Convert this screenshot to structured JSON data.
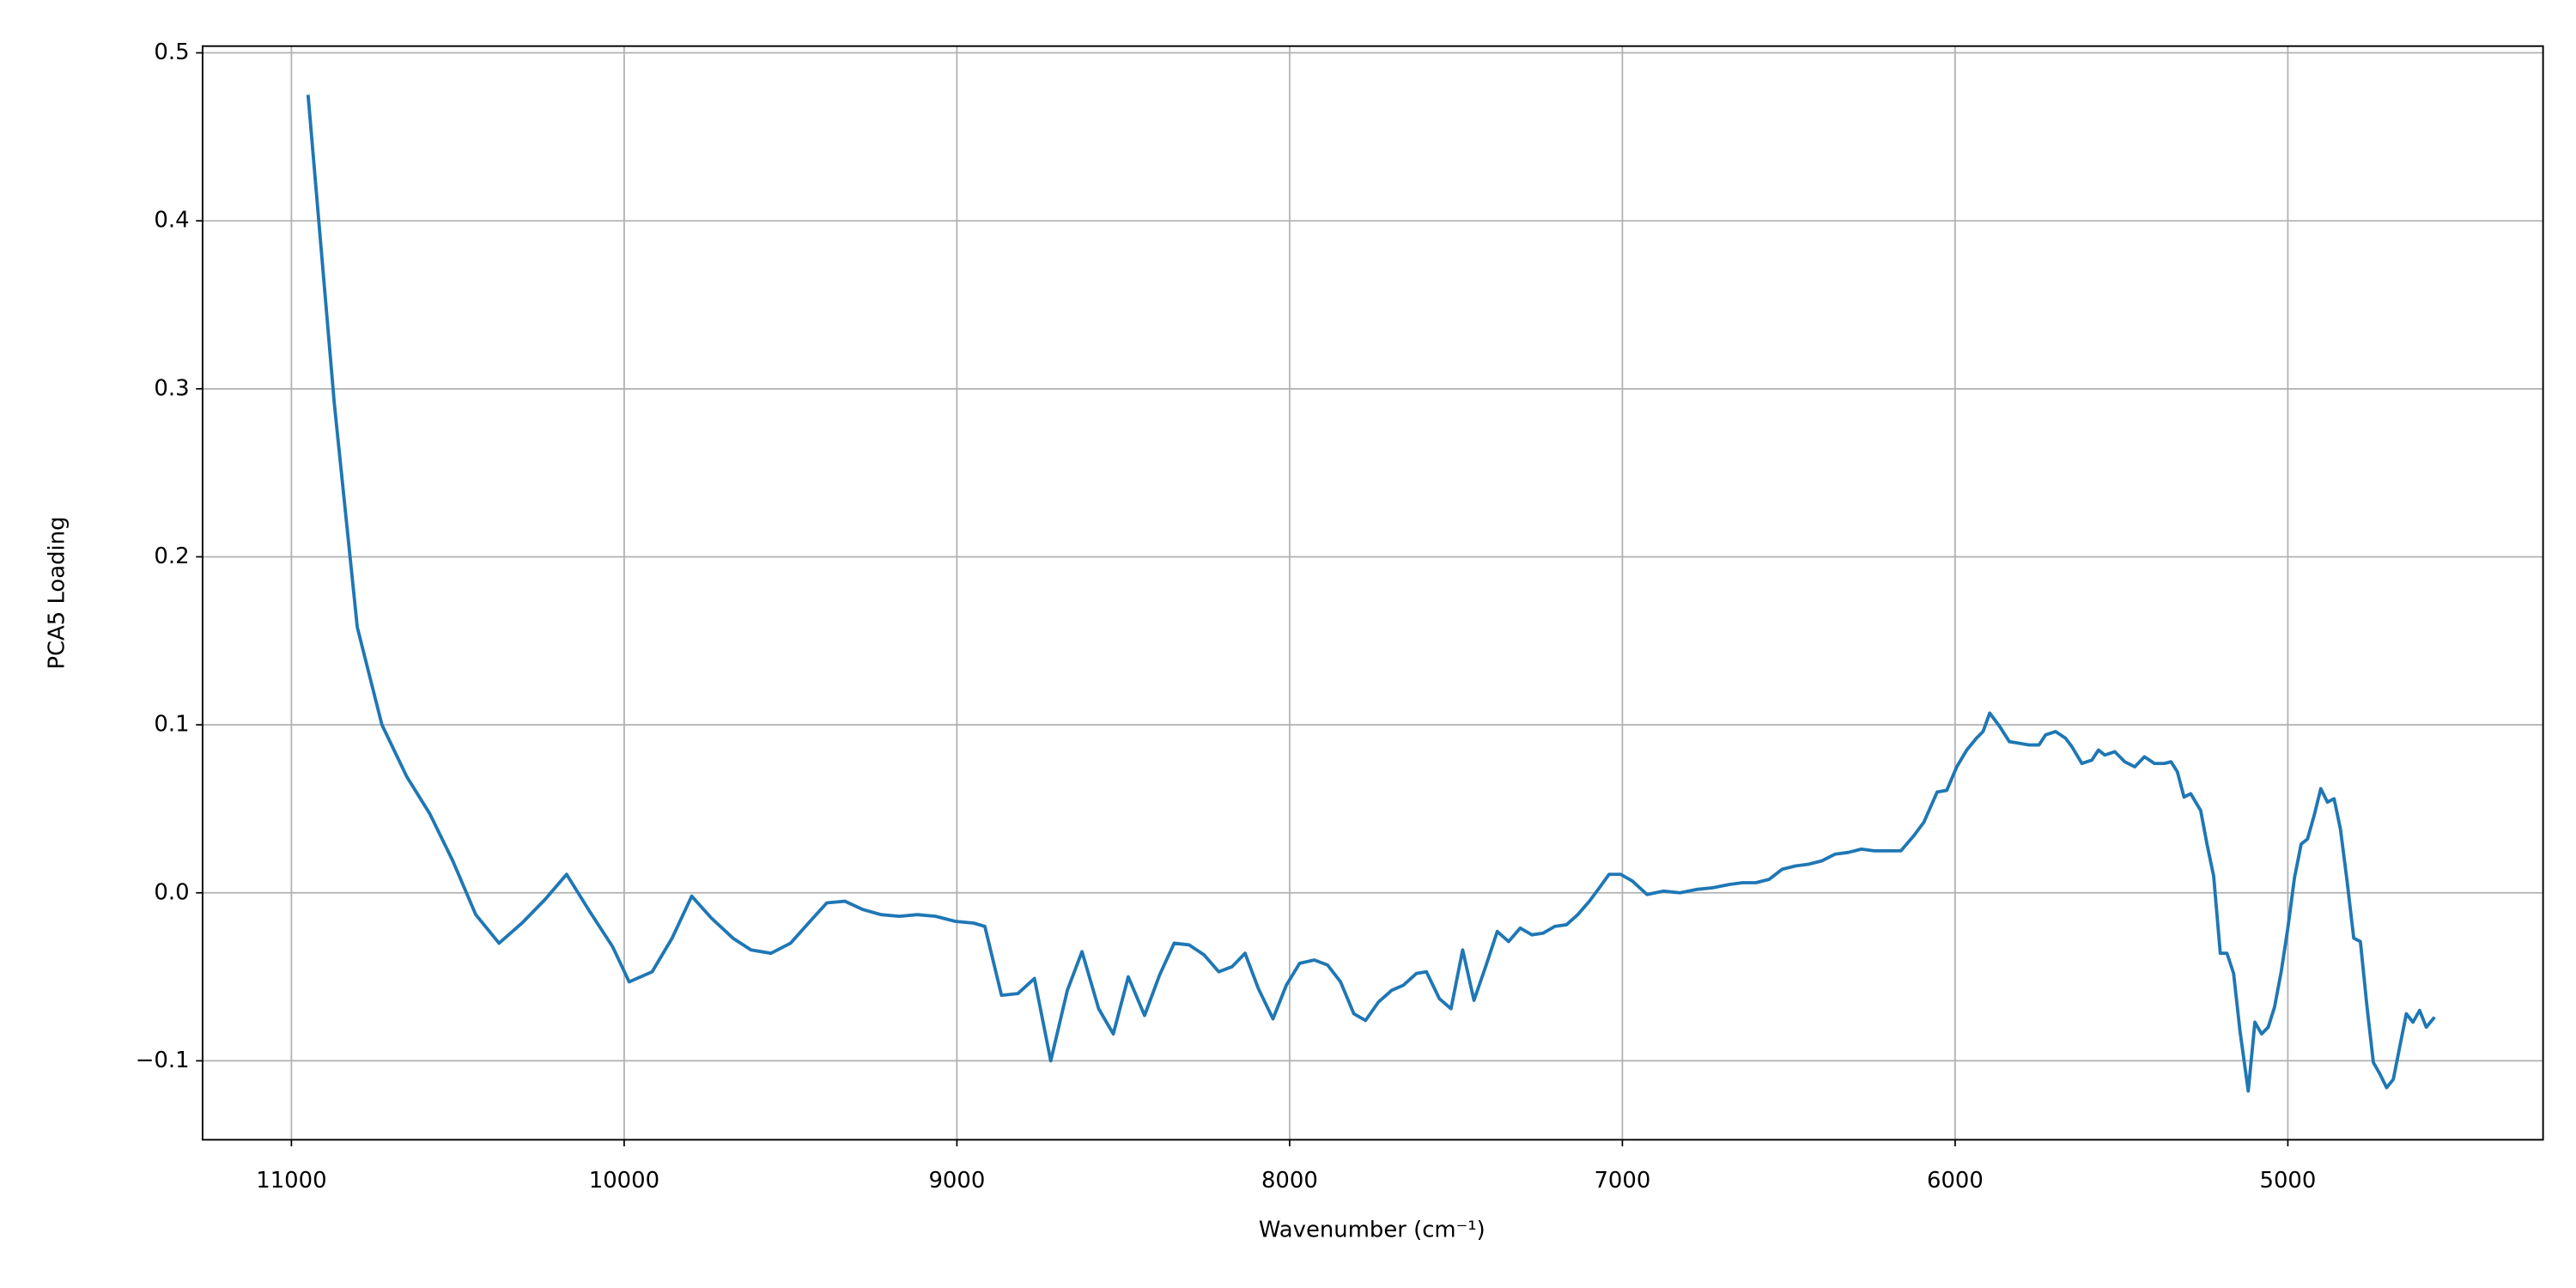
{
  "chart_data": {
    "type": "line",
    "xlabel": "Wavenumber (cm⁻¹)",
    "ylabel": "PCA5 Loading",
    "xlim": [
      11267,
      4233
    ],
    "ylim": [
      -0.147,
      0.504
    ],
    "xticks": [
      11000,
      10000,
      9000,
      8000,
      7000,
      6000,
      5000
    ],
    "yticks": [
      {
        "value": -0.1,
        "label": "−0.1"
      },
      {
        "value": 0,
        "label": "0.0"
      },
      0.1,
      0.2,
      0.3,
      0.4,
      0.5
    ],
    "grid": true,
    "series": [
      {
        "color": "#1f77b4",
        "x": [
          10950,
          10871,
          10802,
          10728,
          10653,
          10584,
          10515,
          10446,
          10376,
          10307,
          10238,
          10173,
          10104,
          10035,
          9985,
          9916,
          9856,
          9797,
          9738,
          9673,
          9619,
          9559,
          9500,
          9446,
          9391,
          9337,
          9282,
          9228,
          9173,
          9119,
          9064,
          9005,
          8950,
          8916,
          8866,
          8817,
          8767,
          8718,
          8668,
          8624,
          8574,
          8530,
          8485,
          8436,
          8391,
          8347,
          8302,
          8257,
          8213,
          8173,
          8134,
          8094,
          8050,
          8010,
          7970,
          7926,
          7886,
          7847,
          7807,
          7772,
          7733,
          7693,
          7658,
          7619,
          7589,
          7550,
          7515,
          7480,
          7446,
          7411,
          7376,
          7342,
          7307,
          7272,
          7238,
          7203,
          7168,
          7134,
          7099,
          7069,
          7040,
          7005,
          6970,
          6926,
          6876,
          6827,
          6777,
          6728,
          6678,
          6639,
          6599,
          6559,
          6520,
          6480,
          6441,
          6401,
          6361,
          6322,
          6282,
          6243,
          6203,
          6163,
          6124,
          6094,
          6054,
          6025,
          5995,
          5965,
          5936,
          5916,
          5896,
          5866,
          5837,
          5807,
          5777,
          5748,
          5728,
          5698,
          5668,
          5649,
          5619,
          5589,
          5569,
          5550,
          5520,
          5490,
          5460,
          5431,
          5401,
          5371,
          5351,
          5332,
          5312,
          5292,
          5262,
          5243,
          5223,
          5203,
          5183,
          5163,
          5144,
          5119,
          5099,
          5079,
          5059,
          5040,
          5020,
          5000,
          4980,
          4960,
          4941,
          4921,
          4901,
          4881,
          4861,
          4842,
          4822,
          4802,
          4782,
          4762,
          4743,
          4723,
          4703,
          4683,
          4663,
          4644,
          4624,
          4604,
          4584,
          4559
        ],
        "values": [
          0.475,
          0.291,
          0.158,
          0.1,
          0.069,
          0.047,
          0.019,
          -0.013,
          -0.03,
          -0.018,
          -0.004,
          0.011,
          -0.011,
          -0.032,
          -0.053,
          -0.047,
          -0.027,
          -0.002,
          -0.015,
          -0.027,
          -0.034,
          -0.036,
          -0.03,
          -0.018,
          -0.006,
          -0.005,
          -0.01,
          -0.013,
          -0.014,
          -0.013,
          -0.014,
          -0.017,
          -0.018,
          -0.02,
          -0.061,
          -0.06,
          -0.051,
          -0.1,
          -0.058,
          -0.035,
          -0.069,
          -0.084,
          -0.05,
          -0.073,
          -0.049,
          -0.03,
          -0.031,
          -0.037,
          -0.047,
          -0.044,
          -0.036,
          -0.057,
          -0.075,
          -0.055,
          -0.042,
          -0.04,
          -0.043,
          -0.053,
          -0.072,
          -0.076,
          -0.065,
          -0.058,
          -0.055,
          -0.048,
          -0.047,
          -0.063,
          -0.069,
          -0.034,
          -0.064,
          -0.044,
          -0.023,
          -0.029,
          -0.021,
          -0.025,
          -0.024,
          -0.02,
          -0.019,
          -0.013,
          -0.005,
          0.003,
          0.011,
          0.011,
          0.007,
          -0.001,
          0.001,
          0,
          0.002,
          0.003,
          0.005,
          0.006,
          0.006,
          0.008,
          0.014,
          0.016,
          0.017,
          0.019,
          0.023,
          0.024,
          0.026,
          0.025,
          0.025,
          0.025,
          0.034,
          0.042,
          0.06,
          0.061,
          0.075,
          0.085,
          0.092,
          0.096,
          0.107,
          0.099,
          0.09,
          0.089,
          0.088,
          0.088,
          0.094,
          0.096,
          0.092,
          0.087,
          0.077,
          0.079,
          0.085,
          0.082,
          0.084,
          0.078,
          0.075,
          0.081,
          0.077,
          0.077,
          0.078,
          0.072,
          0.057,
          0.059,
          0.049,
          0.029,
          0.01,
          -0.036,
          -0.036,
          -0.048,
          -0.082,
          -0.118,
          -0.077,
          -0.084,
          -0.08,
          -0.068,
          -0.047,
          -0.021,
          0.009,
          0.029,
          0.032,
          0.046,
          0.062,
          0.054,
          0.056,
          0.038,
          0.007,
          -0.027,
          -0.029,
          -0.068,
          -0.101,
          -0.108,
          -0.116,
          -0.111,
          -0.091,
          -0.072,
          -0.077,
          -0.07,
          -0.08,
          -0.074
        ]
      }
    ]
  }
}
